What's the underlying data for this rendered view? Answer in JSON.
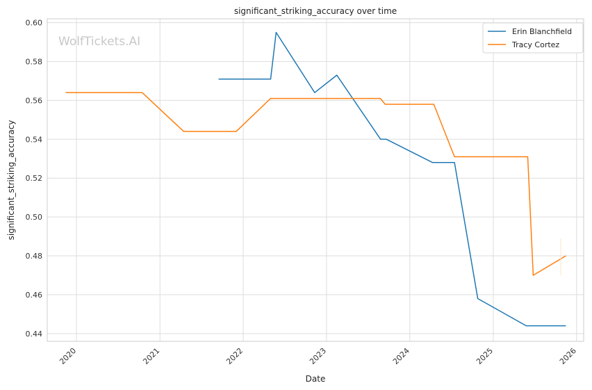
{
  "chart_data": {
    "type": "line",
    "title": "significant_striking_accuracy over time",
    "xlabel": "Date",
    "ylabel": "significant_striking_accuracy",
    "watermark": "WolfTickets.AI",
    "x_ticks": [
      "2020",
      "2021",
      "2022",
      "2023",
      "2024",
      "2025",
      "2026"
    ],
    "y_ticks": [
      "0.44",
      "0.46",
      "0.48",
      "0.50",
      "0.52",
      "0.54",
      "0.56",
      "0.58",
      "0.60"
    ],
    "xlim": [
      "2019-08-26",
      "2026-02-01"
    ],
    "ylim": [
      0.436,
      0.602
    ],
    "grid": true,
    "legend_position": "top-right",
    "series": [
      {
        "name": "Erin Blanchfield",
        "color": "#1f77b4",
        "x": [
          "2021-09-15",
          "2022-05-01",
          "2022-05-25",
          "2022-11-10",
          "2023-02-15",
          "2023-08-26",
          "2023-09-20",
          "2024-04-10",
          "2024-07-15",
          "2024-10-25",
          "2025-05-25",
          "2025-11-15"
        ],
        "y": [
          0.571,
          0.571,
          0.595,
          0.564,
          0.573,
          0.54,
          0.54,
          0.528,
          0.528,
          0.458,
          0.444,
          0.444
        ]
      },
      {
        "name": "Tracy Cortez",
        "color": "#ff7f0e",
        "x": [
          "2019-11-15",
          "2020-10-15",
          "2021-04-15",
          "2021-12-01",
          "2022-05-01",
          "2023-08-25",
          "2023-09-15",
          "2024-04-15",
          "2024-07-15",
          "2025-06-01",
          "2025-06-25",
          "2025-11-15"
        ],
        "y": [
          0.564,
          0.564,
          0.544,
          0.544,
          0.561,
          0.561,
          0.558,
          0.558,
          0.531,
          0.531,
          0.47,
          0.48
        ]
      }
    ]
  }
}
